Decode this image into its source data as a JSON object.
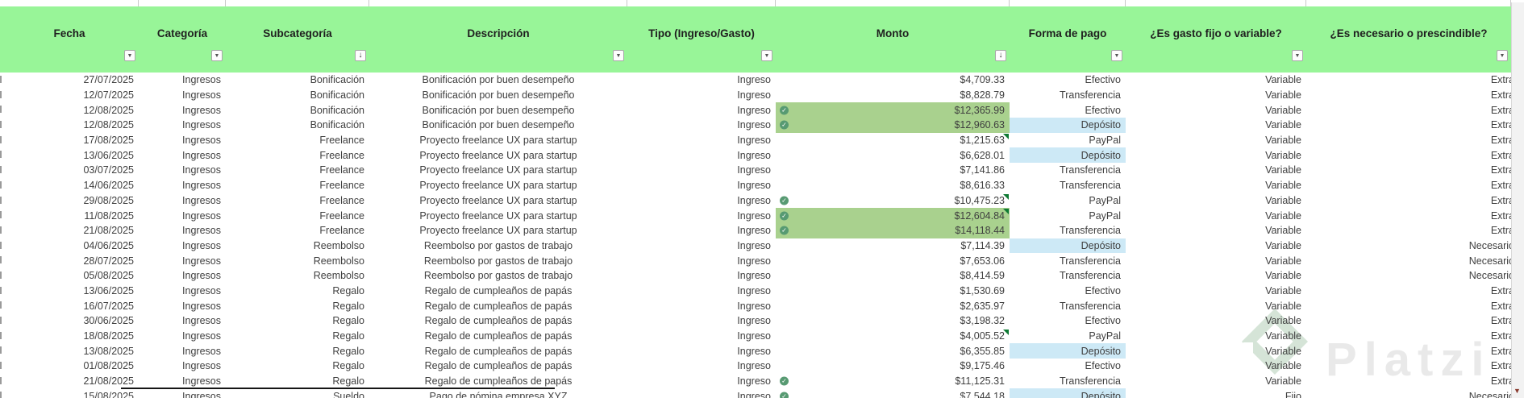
{
  "header": {
    "columns": [
      {
        "label": "Fecha",
        "filter": "plain"
      },
      {
        "label": "Categoría",
        "filter": "plain"
      },
      {
        "label": "Subcategoría",
        "filter": "sorted"
      },
      {
        "label": "Descripción",
        "filter": "plain"
      },
      {
        "label": "Tipo (Ingreso/Gasto)",
        "filter": "plain"
      },
      {
        "label": "Monto",
        "filter": "sorted"
      },
      {
        "label": "Forma de pago",
        "filter": "plain"
      },
      {
        "label": "¿Es gasto fijo o variable?",
        "filter": "plain"
      },
      {
        "label": "¿Es necesario o prescindible?",
        "filter": "plain"
      }
    ],
    "filter_icon": "▼",
    "sorted_icon": "↓",
    "bg_color": "#98f598"
  },
  "rows": [
    {
      "fecha": "27/07/2025",
      "categoria": "Ingresos",
      "subcategoria": "Bonificación",
      "descripcion": "Bonificación por buen desempeño",
      "tipo": "Ingreso",
      "check": false,
      "monto": "$4,709.33",
      "monto_green": false,
      "comment": false,
      "forma": "Efectivo",
      "forma_blue": false,
      "fijo": "Variable",
      "necesario": "Extra"
    },
    {
      "fecha": "12/07/2025",
      "categoria": "Ingresos",
      "subcategoria": "Bonificación",
      "descripcion": "Bonificación por buen desempeño",
      "tipo": "Ingreso",
      "check": false,
      "monto": "$8,828.79",
      "monto_green": false,
      "comment": false,
      "forma": "Transferencia",
      "forma_blue": false,
      "fijo": "Variable",
      "necesario": "Extra"
    },
    {
      "fecha": "12/08/2025",
      "categoria": "Ingresos",
      "subcategoria": "Bonificación",
      "descripcion": "Bonificación por buen desempeño",
      "tipo": "Ingreso",
      "check": true,
      "monto": "$12,365.99",
      "monto_green": true,
      "comment": false,
      "forma": "Efectivo",
      "forma_blue": false,
      "fijo": "Variable",
      "necesario": "Extra"
    },
    {
      "fecha": "12/08/2025",
      "categoria": "Ingresos",
      "subcategoria": "Bonificación",
      "descripcion": "Bonificación por buen desempeño",
      "tipo": "Ingreso",
      "check": true,
      "monto": "$12,960.63",
      "monto_green": true,
      "comment": false,
      "forma": "Depósito",
      "forma_blue": true,
      "fijo": "Variable",
      "necesario": "Extra"
    },
    {
      "fecha": "17/08/2025",
      "categoria": "Ingresos",
      "subcategoria": "Freelance",
      "descripcion": "Proyecto freelance UX para startup",
      "tipo": "Ingreso",
      "check": false,
      "monto": "$1,215.63",
      "monto_green": false,
      "comment": true,
      "forma": "PayPal",
      "forma_blue": false,
      "fijo": "Variable",
      "necesario": "Extra"
    },
    {
      "fecha": "13/06/2025",
      "categoria": "Ingresos",
      "subcategoria": "Freelance",
      "descripcion": "Proyecto freelance UX para startup",
      "tipo": "Ingreso",
      "check": false,
      "monto": "$6,628.01",
      "monto_green": false,
      "comment": false,
      "forma": "Depósito",
      "forma_blue": true,
      "fijo": "Variable",
      "necesario": "Extra"
    },
    {
      "fecha": "03/07/2025",
      "categoria": "Ingresos",
      "subcategoria": "Freelance",
      "descripcion": "Proyecto freelance UX para startup",
      "tipo": "Ingreso",
      "check": false,
      "monto": "$7,141.86",
      "monto_green": false,
      "comment": false,
      "forma": "Transferencia",
      "forma_blue": false,
      "fijo": "Variable",
      "necesario": "Extra"
    },
    {
      "fecha": "14/06/2025",
      "categoria": "Ingresos",
      "subcategoria": "Freelance",
      "descripcion": "Proyecto freelance UX para startup",
      "tipo": "Ingreso",
      "check": false,
      "monto": "$8,616.33",
      "monto_green": false,
      "comment": false,
      "forma": "Transferencia",
      "forma_blue": false,
      "fijo": "Variable",
      "necesario": "Extra"
    },
    {
      "fecha": "29/08/2025",
      "categoria": "Ingresos",
      "subcategoria": "Freelance",
      "descripcion": "Proyecto freelance UX para startup",
      "tipo": "Ingreso",
      "check": true,
      "monto": "$10,475.23",
      "monto_green": false,
      "comment": true,
      "forma": "PayPal",
      "forma_blue": false,
      "fijo": "Variable",
      "necesario": "Extra"
    },
    {
      "fecha": "11/08/2025",
      "categoria": "Ingresos",
      "subcategoria": "Freelance",
      "descripcion": "Proyecto freelance UX para startup",
      "tipo": "Ingreso",
      "check": true,
      "monto": "$12,604.84",
      "monto_green": true,
      "comment": true,
      "forma": "PayPal",
      "forma_blue": false,
      "fijo": "Variable",
      "necesario": "Extra"
    },
    {
      "fecha": "21/08/2025",
      "categoria": "Ingresos",
      "subcategoria": "Freelance",
      "descripcion": "Proyecto freelance UX para startup",
      "tipo": "Ingreso",
      "check": true,
      "monto": "$14,118.44",
      "monto_green": true,
      "comment": false,
      "forma": "Transferencia",
      "forma_blue": false,
      "fijo": "Variable",
      "necesario": "Extra"
    },
    {
      "fecha": "04/06/2025",
      "categoria": "Ingresos",
      "subcategoria": "Reembolso",
      "descripcion": "Reembolso por gastos de trabajo",
      "tipo": "Ingreso",
      "check": false,
      "monto": "$7,114.39",
      "monto_green": false,
      "comment": false,
      "forma": "Depósito",
      "forma_blue": true,
      "fijo": "Variable",
      "necesario": "Necesario"
    },
    {
      "fecha": "28/07/2025",
      "categoria": "Ingresos",
      "subcategoria": "Reembolso",
      "descripcion": "Reembolso por gastos de trabajo",
      "tipo": "Ingreso",
      "check": false,
      "monto": "$7,653.06",
      "monto_green": false,
      "comment": false,
      "forma": "Transferencia",
      "forma_blue": false,
      "fijo": "Variable",
      "necesario": "Necesario"
    },
    {
      "fecha": "05/08/2025",
      "categoria": "Ingresos",
      "subcategoria": "Reembolso",
      "descripcion": "Reembolso por gastos de trabajo",
      "tipo": "Ingreso",
      "check": false,
      "monto": "$8,414.59",
      "monto_green": false,
      "comment": false,
      "forma": "Transferencia",
      "forma_blue": false,
      "fijo": "Variable",
      "necesario": "Necesario"
    },
    {
      "fecha": "13/06/2025",
      "categoria": "Ingresos",
      "subcategoria": "Regalo",
      "descripcion": "Regalo de cumpleaños de papás",
      "tipo": "Ingreso",
      "check": false,
      "monto": "$1,530.69",
      "monto_green": false,
      "comment": false,
      "forma": "Efectivo",
      "forma_blue": false,
      "fijo": "Variable",
      "necesario": "Extra"
    },
    {
      "fecha": "16/07/2025",
      "categoria": "Ingresos",
      "subcategoria": "Regalo",
      "descripcion": "Regalo de cumpleaños de papás",
      "tipo": "Ingreso",
      "check": false,
      "monto": "$2,635.97",
      "monto_green": false,
      "comment": false,
      "forma": "Transferencia",
      "forma_blue": false,
      "fijo": "Variable",
      "necesario": "Extra"
    },
    {
      "fecha": "30/06/2025",
      "categoria": "Ingresos",
      "subcategoria": "Regalo",
      "descripcion": "Regalo de cumpleaños de papás",
      "tipo": "Ingreso",
      "check": false,
      "monto": "$3,198.32",
      "monto_green": false,
      "comment": false,
      "forma": "Efectivo",
      "forma_blue": false,
      "fijo": "Variable",
      "necesario": "Extra"
    },
    {
      "fecha": "18/08/2025",
      "categoria": "Ingresos",
      "subcategoria": "Regalo",
      "descripcion": "Regalo de cumpleaños de papás",
      "tipo": "Ingreso",
      "check": false,
      "monto": "$4,005.52",
      "monto_green": false,
      "comment": true,
      "forma": "PayPal",
      "forma_blue": false,
      "fijo": "Variable",
      "necesario": "Extra"
    },
    {
      "fecha": "13/08/2025",
      "categoria": "Ingresos",
      "subcategoria": "Regalo",
      "descripcion": "Regalo de cumpleaños de papás",
      "tipo": "Ingreso",
      "check": false,
      "monto": "$6,355.85",
      "monto_green": false,
      "comment": false,
      "forma": "Depósito",
      "forma_blue": true,
      "fijo": "Variable",
      "necesario": "Extra"
    },
    {
      "fecha": "01/08/2025",
      "categoria": "Ingresos",
      "subcategoria": "Regalo",
      "descripcion": "Regalo de cumpleaños de papás",
      "tipo": "Ingreso",
      "check": false,
      "monto": "$9,175.46",
      "monto_green": false,
      "comment": false,
      "forma": "Efectivo",
      "forma_blue": false,
      "fijo": "Variable",
      "necesario": "Extra"
    },
    {
      "fecha": "21/08/2025",
      "categoria": "Ingresos",
      "subcategoria": "Regalo",
      "descripcion": "Regalo de cumpleaños de papás",
      "tipo": "Ingreso",
      "check": true,
      "monto": "$11,125.31",
      "monto_green": false,
      "comment": false,
      "forma": "Transferencia",
      "forma_blue": false,
      "fijo": "Variable",
      "necesario": "Extra"
    },
    {
      "fecha": "15/08/2025",
      "categoria": "Ingresos",
      "subcategoria": "Sueldo",
      "descripcion": "Pago de nómina empresa XYZ",
      "tipo": "Ingreso",
      "check": true,
      "monto": "$7,544.18",
      "monto_green": false,
      "comment": false,
      "forma": "Depósito",
      "forma_blue": true,
      "fijo": "Fijo",
      "necesario": "Necesario"
    }
  ],
  "icons": {
    "check_icon": "✓",
    "scrollbar_down_icon": "▼"
  },
  "colors": {
    "header_green": "#98f598",
    "conditional_green_fill": "#a9d18e",
    "conditional_blue_fill": "#cde9f6",
    "check_icon_green": "#579a72",
    "comment_marker_green": "#0e7a33",
    "scrollbar_arrow_red": "#8a3a2e"
  },
  "watermark": {
    "text": "Platzi"
  }
}
